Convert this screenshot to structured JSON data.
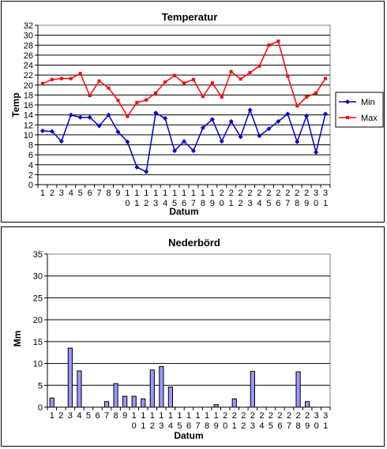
{
  "chart_data": [
    {
      "type": "line",
      "title": "Temperatur",
      "xlabel": "Datum",
      "ylabel": "Temp",
      "ylim": [
        0,
        32
      ],
      "ytick_step": 2,
      "categories": [
        "1",
        "2",
        "3",
        "4",
        "5",
        "6",
        "7",
        "8",
        "9",
        "10",
        "11",
        "12",
        "13",
        "14",
        "15",
        "16",
        "17",
        "18",
        "19",
        "20",
        "21",
        "22",
        "23",
        "24",
        "25",
        "26",
        "27",
        "28",
        "29",
        "30",
        "31"
      ],
      "series": [
        {
          "name": "Min",
          "color": "#0000CC",
          "marker": "diamond",
          "values": [
            10.8,
            10.7,
            8.7,
            14.0,
            13.5,
            13.5,
            11.8,
            14.0,
            10.6,
            8.6,
            3.5,
            2.6,
            14.4,
            13.3,
            6.8,
            8.7,
            6.8,
            11.4,
            13.1,
            8.7,
            12.7,
            9.6,
            15.0,
            9.8,
            11.2,
            12.7,
            14.2,
            8.6,
            13.8,
            6.5,
            14.2
          ]
        },
        {
          "name": "Max",
          "color": "#FF0000",
          "marker": "square",
          "values": [
            20.3,
            21.1,
            21.3,
            21.3,
            22.3,
            17.9,
            20.8,
            19.4,
            16.9,
            13.7,
            16.5,
            17.0,
            18.4,
            20.6,
            21.9,
            20.4,
            21.1,
            17.7,
            20.4,
            17.6,
            22.7,
            21.2,
            22.5,
            23.8,
            28.0,
            28.8,
            21.8,
            15.8,
            17.6,
            18.4,
            21.3
          ]
        }
      ],
      "grid": true,
      "legend": "right"
    },
    {
      "type": "bar",
      "title": "Nederbörd",
      "xlabel": "Datum",
      "ylabel": "Mm",
      "ylim": [
        0,
        35
      ],
      "ytick_step": 5,
      "categories": [
        "1",
        "2",
        "3",
        "4",
        "5",
        "6",
        "7",
        "8",
        "9",
        "10",
        "11",
        "12",
        "13",
        "14",
        "15",
        "16",
        "17",
        "18",
        "19",
        "20",
        "21",
        "22",
        "23",
        "24",
        "25",
        "26",
        "27",
        "28",
        "29",
        "30",
        "31"
      ],
      "series": [
        {
          "color": "#9999FF",
          "values": [
            2.1,
            0,
            13.5,
            8.3,
            0,
            0,
            1.3,
            5.4,
            2.5,
            2.5,
            1.9,
            8.5,
            9.3,
            4.6,
            0,
            0,
            0,
            0,
            0.6,
            0,
            1.9,
            0,
            8.2,
            0,
            0,
            0,
            0,
            8.1,
            1.3,
            0,
            0
          ]
        }
      ],
      "grid": true,
      "legend": "none"
    }
  ]
}
